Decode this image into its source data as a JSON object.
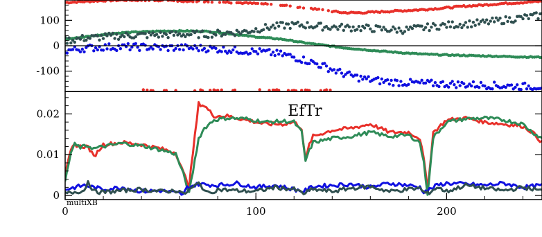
{
  "chart_data": [
    {
      "type": "scatter",
      "title": "",
      "xlabel": "",
      "ylabel": "",
      "xlim": [
        0,
        250
      ],
      "ylim": [
        -180,
        180
      ],
      "yticks": [
        100,
        0,
        -100
      ],
      "ytick_labels": [
        "100",
        "0",
        "-100"
      ],
      "grid": false,
      "zero_line": true,
      "series": [
        {
          "color": "#e8302a",
          "style": "dots-wrapping",
          "values": [
            170,
            174,
            178,
            180,
            179,
            177,
            176,
            175,
            172,
            168,
            165,
            160,
            150,
            140,
            130,
            130,
            134,
            138,
            142,
            148,
            155,
            160,
            166,
            170,
            175
          ]
        },
        {
          "color": "#2e8b57",
          "style": "line-dots",
          "values": [
            25,
            35,
            45,
            52,
            55,
            58,
            58,
            57,
            50,
            40,
            32,
            25,
            12,
            2,
            -8,
            -15,
            -22,
            -28,
            -33,
            -36,
            -38,
            -40,
            -42,
            -44,
            -45
          ]
        },
        {
          "color": "#2f4f4f",
          "style": "dots",
          "values": [
            20,
            30,
            35,
            40,
            42,
            43,
            45,
            45,
            50,
            55,
            70,
            80,
            82,
            75,
            72,
            70,
            65,
            62,
            70,
            80,
            85,
            90,
            100,
            110,
            120
          ]
        },
        {
          "color": "#1010e0",
          "style": "dots",
          "values": [
            -20,
            -10,
            -5,
            -5,
            -5,
            -8,
            -8,
            -10,
            -15,
            -20,
            -25,
            -35,
            -55,
            -80,
            -110,
            -130,
            -140,
            -145,
            -148,
            -150,
            -152,
            -155,
            -158,
            -160,
            -160
          ]
        }
      ]
    },
    {
      "type": "line",
      "title": "EfTr",
      "xlabel": "",
      "ylabel": "",
      "xlim": [
        0,
        250
      ],
      "ylim": [
        -0.001,
        0.0255
      ],
      "xticks": [
        0,
        100,
        200
      ],
      "xtick_labels": [
        "0",
        "100",
        "200"
      ],
      "yticks": [
        0,
        0.01,
        0.02
      ],
      "ytick_labels": [
        "0",
        "0.01",
        "0.02"
      ],
      "annotation": "multiXB",
      "grid": false,
      "series": [
        {
          "color": "#e8302a",
          "x": [
            0,
            3,
            5,
            8,
            12,
            15,
            20,
            30,
            40,
            50,
            58,
            62,
            65,
            70,
            73,
            78,
            85,
            95,
            105,
            115,
            120,
            124,
            126,
            128,
            130,
            140,
            150,
            160,
            170,
            180,
            186,
            188,
            190,
            193,
            200,
            210,
            220,
            230,
            240,
            245,
            250
          ],
          "y": [
            0.005,
            0.011,
            0.0125,
            0.012,
            0.012,
            0.0095,
            0.0125,
            0.013,
            0.0125,
            0.0115,
            0.0105,
            0.0055,
            0.0025,
            0.0225,
            0.022,
            0.0195,
            0.0195,
            0.0185,
            0.0175,
            0.0175,
            0.018,
            0.0165,
            0.0085,
            0.0125,
            0.0145,
            0.016,
            0.0165,
            0.0175,
            0.0155,
            0.0155,
            0.014,
            0.009,
            0.0015,
            0.0155,
            0.0185,
            0.019,
            0.018,
            0.0175,
            0.017,
            0.0155,
            0.013
          ]
        },
        {
          "color": "#2e8b57",
          "x": [
            0,
            3,
            5,
            8,
            12,
            15,
            20,
            30,
            40,
            50,
            58,
            62,
            65,
            70,
            73,
            78,
            85,
            95,
            105,
            115,
            120,
            124,
            126,
            128,
            130,
            140,
            150,
            160,
            170,
            180,
            186,
            188,
            190,
            193,
            200,
            210,
            220,
            230,
            240,
            245,
            250
          ],
          "y": [
            0.0035,
            0.0105,
            0.0125,
            0.0118,
            0.0122,
            0.0115,
            0.012,
            0.0128,
            0.0122,
            0.0112,
            0.0102,
            0.0052,
            0.0005,
            0.014,
            0.0165,
            0.0185,
            0.019,
            0.0188,
            0.018,
            0.0182,
            0.018,
            0.0155,
            0.0085,
            0.011,
            0.013,
            0.014,
            0.0145,
            0.0155,
            0.0145,
            0.0148,
            0.013,
            0.008,
            0.0005,
            0.0142,
            0.018,
            0.0188,
            0.019,
            0.0185,
            0.0175,
            0.0155,
            0.014
          ]
        },
        {
          "color": "#1010e0",
          "x": [
            0,
            10,
            20,
            30,
            40,
            50,
            60,
            62,
            64,
            70,
            80,
            90,
            100,
            110,
            120,
            125,
            130,
            140,
            150,
            160,
            170,
            180,
            186,
            188,
            190,
            195,
            200,
            210,
            220,
            230,
            240,
            250
          ],
          "y": [
            0.0015,
            0.0025,
            0.0015,
            0.002,
            0.001,
            0.0012,
            0.0005,
            0.0002,
            0.002,
            0.0028,
            0.0025,
            0.003,
            0.002,
            0.0025,
            0.0015,
            0.001,
            0.0022,
            0.0025,
            0.0028,
            0.002,
            0.003,
            0.0025,
            0.002,
            0.001,
            0.0012,
            0.0025,
            0.003,
            0.0028,
            0.0025,
            0.003,
            0.002,
            0.0025
          ]
        },
        {
          "color": "#2f4f4f",
          "x": [
            0,
            10,
            12,
            15,
            20,
            30,
            40,
            50,
            60,
            62,
            64,
            70,
            75,
            80,
            90,
            100,
            110,
            120,
            125,
            130,
            140,
            150,
            160,
            170,
            180,
            186,
            188,
            190,
            195,
            200,
            210,
            220,
            230,
            240,
            250
          ],
          "y": [
            0.0005,
            0.0012,
            0.0035,
            0.001,
            0.0008,
            0.0012,
            0.0015,
            0.001,
            0.0012,
            0.0002,
            0.001,
            0.003,
            0.0005,
            0.0015,
            0.0012,
            0.001,
            0.002,
            0.0015,
            0.0005,
            0.0015,
            0.001,
            0.0018,
            0.0022,
            0.001,
            0.0015,
            0.0018,
            0.0008,
            0.0005,
            0.002,
            0.001,
            0.0025,
            0.0018,
            0.0012,
            0.002,
            0.0012
          ]
        }
      ]
    }
  ]
}
